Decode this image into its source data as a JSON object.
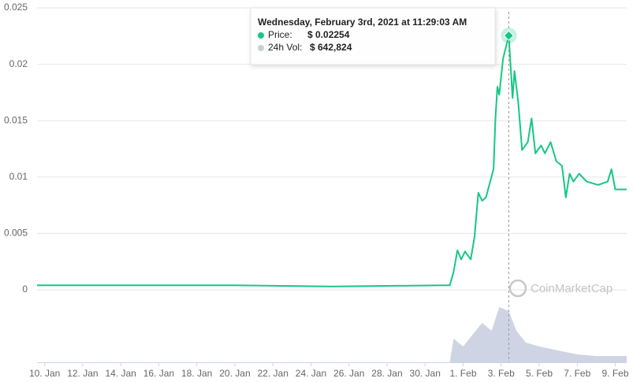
{
  "chart_data": {
    "type": "line",
    "xlim": [
      9.6,
      40.6
    ],
    "xticks": [
      {
        "value": 10,
        "label": "10. Jan"
      },
      {
        "value": 12,
        "label": "12. Jan"
      },
      {
        "value": 14,
        "label": "14. Jan"
      },
      {
        "value": 16,
        "label": "16. Jan"
      },
      {
        "value": 18,
        "label": "18. Jan"
      },
      {
        "value": 20,
        "label": "20. Jan"
      },
      {
        "value": 22,
        "label": "22. Jan"
      },
      {
        "value": 24,
        "label": "24. Jan"
      },
      {
        "value": 26,
        "label": "26. Jan"
      },
      {
        "value": 28,
        "label": "28. Jan"
      },
      {
        "value": 30,
        "label": "30. Jan"
      },
      {
        "value": 32,
        "label": "1. Feb"
      },
      {
        "value": 34,
        "label": "3. Feb"
      },
      {
        "value": 36,
        "label": "5. Feb"
      },
      {
        "value": 38,
        "label": "7. Feb"
      },
      {
        "value": 40,
        "label": "9. Feb"
      }
    ],
    "ylim": [
      0,
      0.025
    ],
    "yticks": [
      0,
      0.005,
      0.01,
      0.015,
      0.02,
      0.025
    ],
    "y2lim": [
      0,
      740000
    ],
    "grid": true,
    "series": [
      {
        "name": "Price",
        "color": "#16c784",
        "x": [
          9.6,
          14,
          20,
          25.1,
          30.9,
          31.3,
          31.5,
          31.7,
          31.9,
          32.1,
          32.4,
          32.6,
          32.8,
          33.0,
          33.2,
          33.6,
          33.7,
          33.8,
          33.9,
          34.1,
          34.4,
          34.6,
          34.7,
          34.9,
          35.1,
          35.4,
          35.6,
          35.8,
          36.1,
          36.3,
          36.6,
          36.9,
          37.2,
          37.4,
          37.6,
          37.8,
          38.1,
          38.5,
          39.1,
          39.6,
          39.8,
          40.0,
          40.6
        ],
        "values": [
          0.0004,
          0.0004,
          0.0004,
          0.0003,
          0.0004,
          0.0004,
          0.0016,
          0.0035,
          0.0027,
          0.0034,
          0.0027,
          0.0047,
          0.0086,
          0.0079,
          0.0082,
          0.0107,
          0.0152,
          0.018,
          0.0173,
          0.0205,
          0.02254,
          0.017,
          0.0194,
          0.0166,
          0.0124,
          0.0131,
          0.0152,
          0.0121,
          0.0128,
          0.0121,
          0.0131,
          0.0114,
          0.011,
          0.0082,
          0.0103,
          0.0096,
          0.0103,
          0.0096,
          0.0093,
          0.0096,
          0.0107,
          0.0089,
          0.0089
        ]
      },
      {
        "name": "24h Vol",
        "color": "#c9cfe0",
        "axis": "y2",
        "x": [
          31.3,
          31.5,
          32.0,
          32.5,
          33.0,
          33.5,
          33.9,
          34.4,
          34.8,
          35.3,
          36.0,
          37.0,
          38.0,
          39.0,
          40.6
        ],
        "values": [
          0,
          297000,
          198000,
          346000,
          494000,
          395000,
          692000,
          642824,
          395000,
          247000,
          198000,
          148000,
          99000,
          79000,
          79000
        ]
      }
    ],
    "tooltip": {
      "title": "Wednesday, February 3rd, 2021 at 11:29:03 AM",
      "price_name": "Price:",
      "price_text": "$ 0.02254",
      "vol_name": "24h Vol:",
      "vol_text": "$ 642,824"
    },
    "watermark": "CoinMarketCap"
  }
}
